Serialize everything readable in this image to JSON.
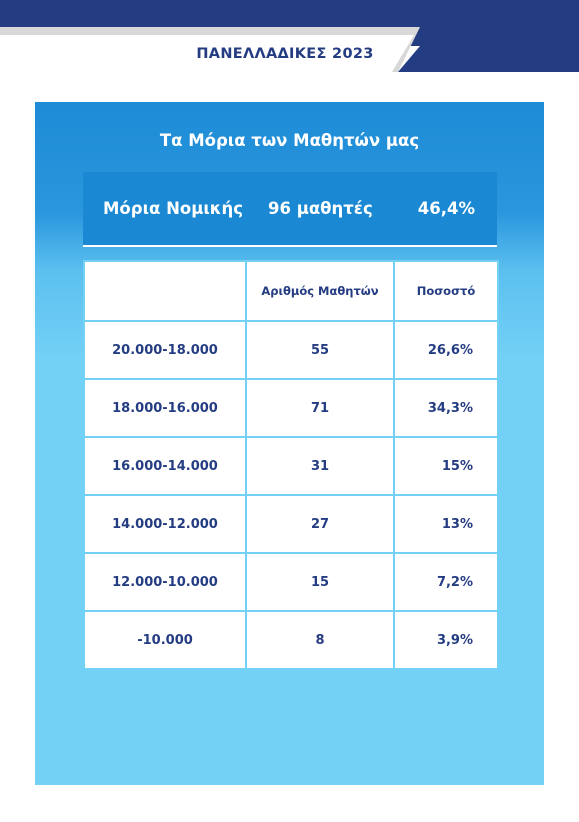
{
  "header": {
    "title": "ΠΑΝΕΛΛΑΔΙΚΕΣ 2023",
    "navy": "#243c82",
    "gray": "#d8d8d8"
  },
  "panel": {
    "title": "Τα Μόρια των Μαθητών μας",
    "summary": {
      "label": "Μόρια Νομικής",
      "count": "96 μαθητές",
      "percent": "46,4%"
    },
    "table": {
      "columns": [
        "",
        "Αριθμός Μαθητών",
        "Ποσοστό"
      ],
      "rows": [
        {
          "range": "20.000-18.000",
          "students": "55",
          "percent": "26,6%"
        },
        {
          "range": "18.000-16.000",
          "students": "71",
          "percent": "34,3%"
        },
        {
          "range": "16.000-14.000",
          "students": "31",
          "percent": "15%"
        },
        {
          "range": "14.000-12.000",
          "students": "27",
          "percent": "13%"
        },
        {
          "range": "12.000-10.000",
          "students": "15",
          "percent": "7,2%"
        },
        {
          "range": "-10.000",
          "students": "8",
          "percent": "3,9%"
        }
      ]
    }
  }
}
